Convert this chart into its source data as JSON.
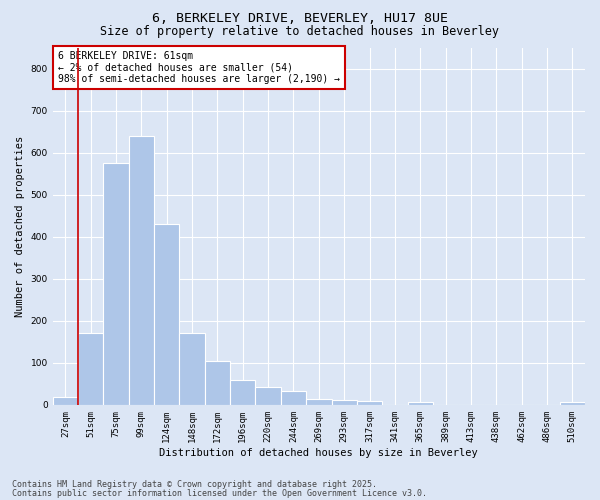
{
  "title": "6, BERKELEY DRIVE, BEVERLEY, HU17 8UE",
  "subtitle": "Size of property relative to detached houses in Beverley",
  "xlabel": "Distribution of detached houses by size in Beverley",
  "ylabel": "Number of detached properties",
  "categories": [
    "27sqm",
    "51sqm",
    "75sqm",
    "99sqm",
    "124sqm",
    "148sqm",
    "172sqm",
    "196sqm",
    "220sqm",
    "244sqm",
    "269sqm",
    "293sqm",
    "317sqm",
    "341sqm",
    "365sqm",
    "389sqm",
    "413sqm",
    "438sqm",
    "462sqm",
    "486sqm",
    "510sqm"
  ],
  "values": [
    18,
    170,
    575,
    640,
    430,
    170,
    105,
    58,
    42,
    32,
    15,
    11,
    10,
    0,
    7,
    0,
    0,
    0,
    0,
    0,
    6
  ],
  "bar_color": "#aec6e8",
  "bar_edgecolor": "#ffffff",
  "vline_color": "#cc0000",
  "vline_xindex": 1,
  "annotation_text": "6 BERKELEY DRIVE: 61sqm\n← 2% of detached houses are smaller (54)\n98% of semi-detached houses are larger (2,190) →",
  "annotation_box_facecolor": "#ffffff",
  "annotation_box_edgecolor": "#cc0000",
  "ylim": [
    0,
    850
  ],
  "yticks": [
    0,
    100,
    200,
    300,
    400,
    500,
    600,
    700,
    800
  ],
  "background_color": "#dce6f5",
  "plot_background": "#dce6f5",
  "grid_color": "#ffffff",
  "footer_line1": "Contains HM Land Registry data © Crown copyright and database right 2025.",
  "footer_line2": "Contains public sector information licensed under the Open Government Licence v3.0.",
  "title_fontsize": 9.5,
  "subtitle_fontsize": 8.5,
  "axis_label_fontsize": 7.5,
  "tick_fontsize": 6.5,
  "annotation_fontsize": 7,
  "footer_fontsize": 6
}
